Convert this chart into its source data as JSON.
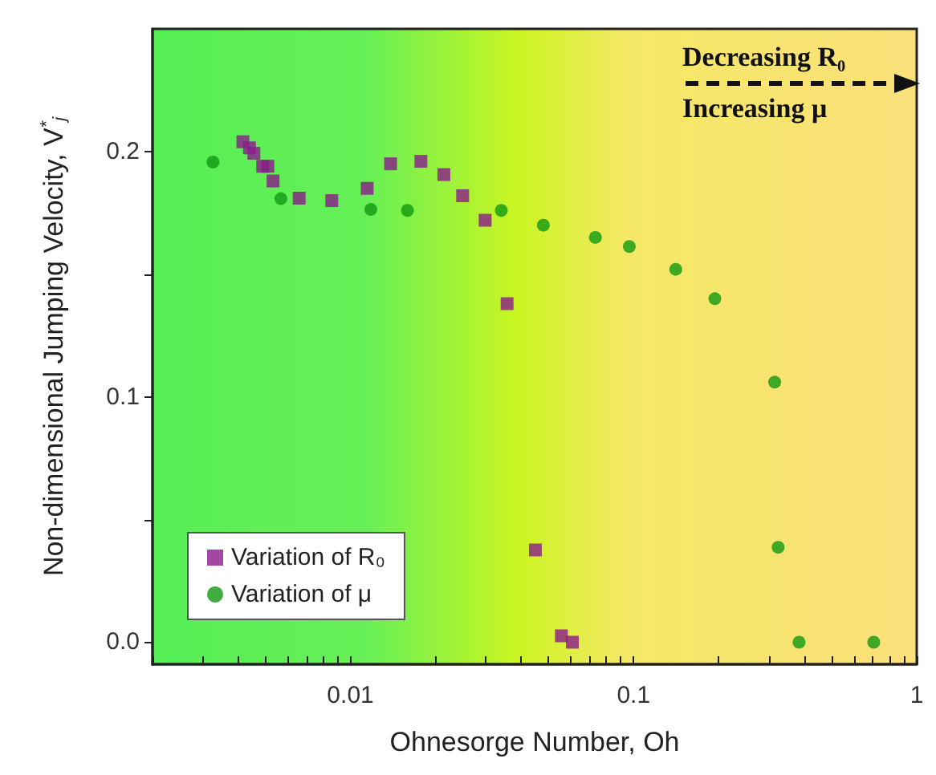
{
  "chart_data": {
    "type": "scatter",
    "xlabel": "Ohnesorge Number, Oh",
    "ylabel": "Non-dimensional Jumping Velocity, V$^{*}$$_{j}$",
    "log": "x",
    "legend": "bottom left",
    "xlim": [
      0.002,
      1
    ],
    "xticks": [
      {
        "value": 0.002,
        "label": null
      },
      {
        "value": 0.003,
        "label": null
      },
      {
        "value": 0.004,
        "label": null
      },
      {
        "value": 0.005,
        "label": null
      },
      {
        "value": 0.006,
        "label": null
      },
      {
        "value": 0.007,
        "label": null
      },
      {
        "value": 0.008,
        "label": null
      },
      {
        "value": 0.009,
        "label": null
      },
      0.01,
      {
        "value": 0.02,
        "label": null
      },
      {
        "value": 0.03,
        "label": null
      },
      {
        "value": 0.04,
        "label": null
      },
      {
        "value": 0.05,
        "label": null
      },
      {
        "value": 0.06,
        "label": null
      },
      {
        "value": 0.07,
        "label": null
      },
      {
        "value": 0.08,
        "label": null
      },
      {
        "value": 0.09,
        "label": null
      },
      0.1,
      {
        "value": 0.2,
        "label": null
      },
      {
        "value": 0.3,
        "label": null
      },
      {
        "value": 0.4,
        "label": null
      },
      {
        "value": 0.5,
        "label": null
      },
      {
        "value": 0.6,
        "label": null
      },
      {
        "value": 0.7,
        "label": null
      },
      {
        "value": 0.8,
        "label": null
      },
      {
        "value": 0.9,
        "label": null
      },
      1
    ],
    "ylim": [
      -0.009,
      0.25
    ],
    "yticks": [
      {
        "value": 0,
        "label": "0.0"
      },
      {
        "value": 0.05,
        "label": null
      },
      {
        "value": 0.1,
        "label": "0.1"
      },
      {
        "value": 0.15,
        "label": null
      },
      {
        "value": 0.2,
        "label": "0.2"
      }
    ],
    "annotations": [
      "Decreasing R₀",
      "Increasing μ"
    ],
    "series": [
      {
        "name": "Variation of R₀",
        "color": "#8b1a8b",
        "marker": "square",
        "x": [
          0.00417,
          0.0044,
          0.00456,
          0.0049,
          0.00511,
          0.00533,
          0.00659,
          0.00859,
          0.01146,
          0.01386,
          0.01774,
          0.02138,
          0.0249,
          0.02991,
          0.03575,
          0.045,
          0.0556,
          0.0608
        ],
        "values": [
          0.204,
          0.2015,
          0.1993,
          0.194,
          0.194,
          0.188,
          0.181,
          0.18,
          0.185,
          0.195,
          0.196,
          0.1906,
          0.182,
          0.172,
          0.138,
          0.0376,
          0.0026,
          0.0
        ]
      },
      {
        "name": "Variation of μ",
        "color": "#119911",
        "marker": "circle",
        "x": [
          0.00327,
          0.00568,
          0.0118,
          0.0159,
          0.0341,
          0.048,
          0.0733,
          0.0966,
          0.1409,
          0.1937,
          0.315,
          0.324,
          0.384,
          0.705
        ],
        "values": [
          0.1957,
          0.1808,
          0.1764,
          0.176,
          0.176,
          0.17,
          0.165,
          0.1613,
          0.152,
          0.14,
          0.106,
          0.0387,
          0.0,
          0.0
        ]
      }
    ]
  }
}
